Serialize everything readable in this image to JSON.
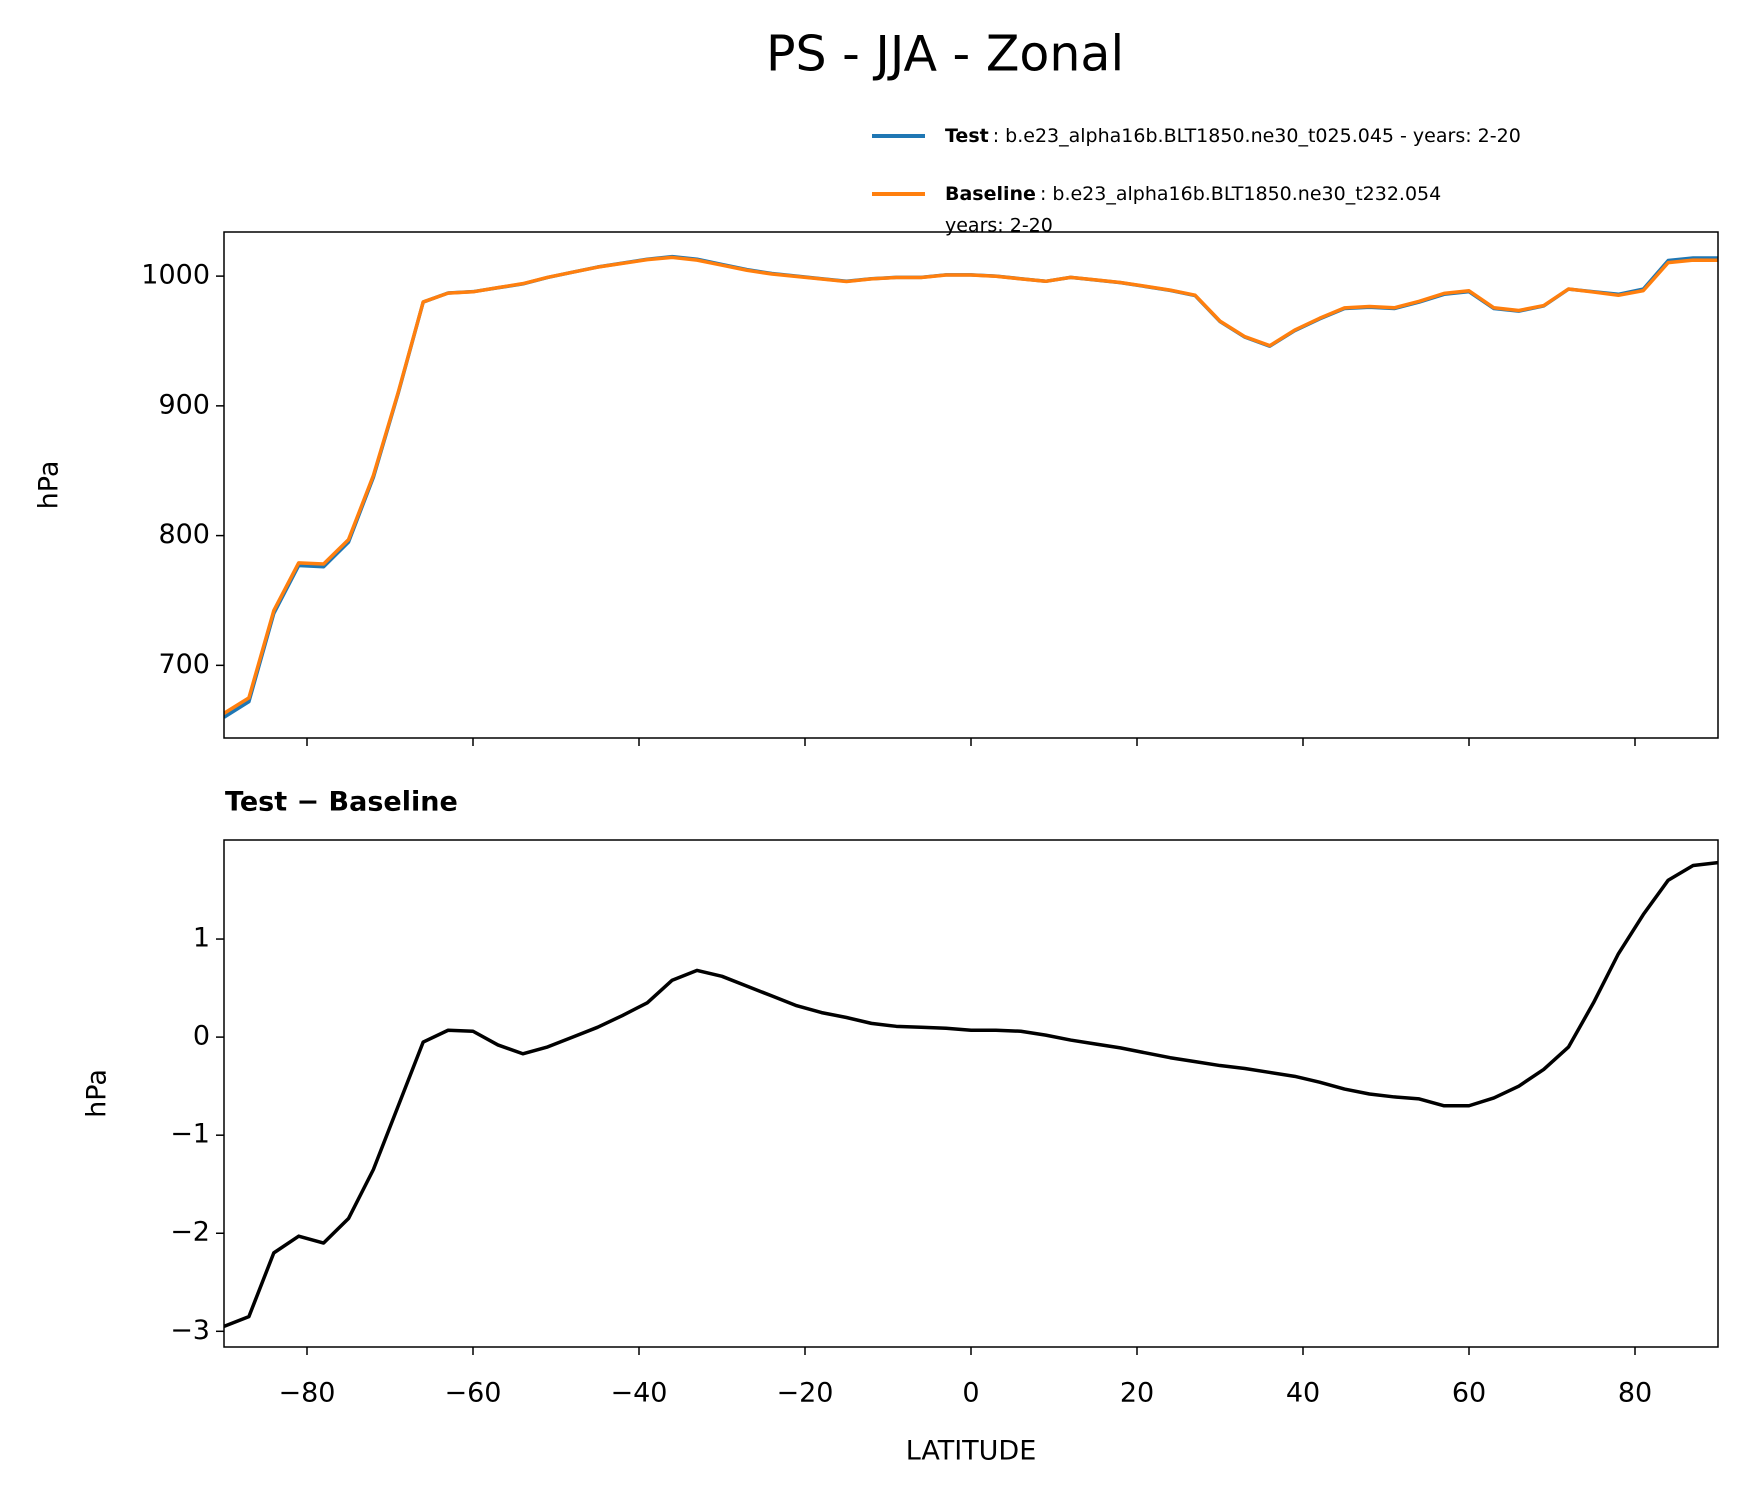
{
  "title": "PS - JJA - Zonal",
  "chart_data": [
    {
      "type": "line",
      "ylabel": "hPa",
      "sharex": true,
      "legend": "upper right",
      "x": [
        -90,
        -87,
        -84,
        -81,
        -78,
        -75,
        -72,
        -69,
        -66,
        -63,
        -60,
        -57,
        -54,
        -51,
        -48,
        -45,
        -42,
        -39,
        -36,
        -33,
        -30,
        -27,
        -24,
        -21,
        -18,
        -15,
        -12,
        -9,
        -6,
        -3,
        0,
        3,
        6,
        9,
        12,
        15,
        18,
        21,
        24,
        27,
        30,
        33,
        36,
        39,
        42,
        45,
        48,
        51,
        54,
        57,
        60,
        63,
        66,
        69,
        72,
        75,
        78,
        81,
        84,
        87,
        90
      ],
      "xlim": [
        -90,
        90
      ],
      "xticks": [
        -80,
        -60,
        -40,
        -20,
        0,
        20,
        40,
        60,
        80
      ],
      "ylim": [
        644,
        1034
      ],
      "yticks": [
        700,
        800,
        900,
        1000
      ],
      "series": [
        {
          "name": "Test",
          "description_lines": [
            ": b.e23_alpha16b.BLT1850.ne30_t025.045 - years: 2-20"
          ],
          "color": "#1f77b4",
          "values": [
            660,
            672,
            740,
            777,
            776,
            795,
            845,
            910,
            980,
            987,
            988,
            991,
            994,
            999,
            1003,
            1007,
            1010,
            1013,
            1015,
            1013,
            1009,
            1005,
            1002,
            1000,
            998,
            996,
            998,
            999,
            999,
            1001,
            1001,
            1000,
            998,
            996,
            999,
            997,
            995,
            992,
            989,
            985,
            965,
            953,
            946,
            958,
            967,
            975,
            976,
            975,
            980,
            986,
            988,
            975,
            973,
            977,
            990,
            988,
            986,
            990,
            1012,
            1014,
            1014
          ]
        },
        {
          "name": "Baseline",
          "description_lines": [
            ": b.e23_alpha16b.BLT1850.ne30_t232.054",
            "years: 2-20"
          ],
          "color": "#ff7f0e",
          "values": [
            663.0,
            674.9,
            742.2,
            779.0,
            778.1,
            796.9,
            846.4,
            910.7,
            980.1,
            986.9,
            987.9,
            991.1,
            994.2,
            999.1,
            1003.0,
            1006.9,
            1009.8,
            1012.7,
            1014.4,
            1012.3,
            1008.4,
            1004.5,
            1001.6,
            999.7,
            997.8,
            995.8,
            997.9,
            998.9,
            998.9,
            1000.9,
            1000.9,
            999.9,
            997.9,
            996.0,
            999.0,
            997.1,
            995.1,
            992.2,
            989.2,
            985.3,
            965.3,
            953.3,
            946.4,
            958.4,
            967.5,
            975.5,
            976.6,
            975.6,
            980.6,
            986.7,
            988.7,
            975.6,
            973.5,
            977.3,
            990.1,
            987.7,
            985.2,
            988.8,
            1010.4,
            1012.3,
            1012.2
          ]
        }
      ]
    },
    {
      "type": "line",
      "title": "Test − Baseline",
      "ylabel": "hPa",
      "xlabel": "LATITUDE",
      "x": [
        -90,
        -87,
        -84,
        -81,
        -78,
        -75,
        -72,
        -69,
        -66,
        -63,
        -60,
        -57,
        -54,
        -51,
        -48,
        -45,
        -42,
        -39,
        -36,
        -33,
        -30,
        -27,
        -24,
        -21,
        -18,
        -15,
        -12,
        -9,
        -6,
        -3,
        0,
        3,
        6,
        9,
        12,
        15,
        18,
        21,
        24,
        27,
        30,
        33,
        36,
        39,
        42,
        45,
        48,
        51,
        54,
        57,
        60,
        63,
        66,
        69,
        72,
        75,
        78,
        81,
        84,
        87,
        90
      ],
      "xlim": [
        -90,
        90
      ],
      "xticks": [
        {
          "value": -80,
          "label": "−80"
        },
        {
          "value": -60,
          "label": "−60"
        },
        {
          "value": -40,
          "label": "−40"
        },
        {
          "value": -20,
          "label": "−20"
        },
        0,
        20,
        40,
        60,
        80
      ],
      "ylim": [
        -3.16,
        2.01
      ],
      "yticks": [
        {
          "value": -3,
          "label": "−3"
        },
        {
          "value": -2,
          "label": "−2"
        },
        {
          "value": -1,
          "label": "−1"
        },
        0,
        1
      ],
      "series": [
        {
          "color": "#000000",
          "values": [
            -2.95,
            -2.85,
            -2.2,
            -2.03,
            -2.1,
            -1.85,
            -1.35,
            -0.7,
            -0.05,
            0.07,
            0.06,
            -0.08,
            -0.17,
            -0.1,
            0.0,
            0.1,
            0.22,
            0.35,
            0.58,
            0.68,
            0.62,
            0.52,
            0.42,
            0.32,
            0.25,
            0.2,
            0.14,
            0.11,
            0.1,
            0.09,
            0.07,
            0.07,
            0.06,
            0.02,
            -0.03,
            -0.07,
            -0.11,
            -0.16,
            -0.21,
            -0.25,
            -0.29,
            -0.32,
            -0.36,
            -0.4,
            -0.46,
            -0.53,
            -0.58,
            -0.61,
            -0.63,
            -0.7,
            -0.7,
            -0.62,
            -0.5,
            -0.33,
            -0.1,
            0.35,
            0.85,
            1.25,
            1.6,
            1.75,
            1.78
          ]
        }
      ]
    }
  ]
}
